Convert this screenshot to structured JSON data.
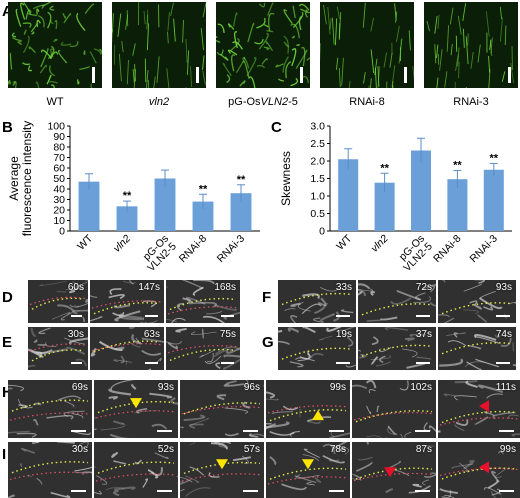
{
  "panels": {
    "A": "A",
    "B": "B",
    "C": "C",
    "D": "D",
    "E": "E",
    "F": "F",
    "G": "G",
    "H": "H",
    "I": "I"
  },
  "panelA": {
    "labels": [
      "WT",
      "vln2",
      "pG-OsVLN2-5",
      "RNAi-8",
      "RNAi-3"
    ],
    "label_parts": [
      {
        "pre": "WT",
        "it": "",
        "post": ""
      },
      {
        "pre": "",
        "it": "vln2",
        "post": ""
      },
      {
        "pre": "pG-Os",
        "it": "VLN2",
        "post": "-5"
      },
      {
        "pre": "RNAi-8",
        "it": "",
        "post": ""
      },
      {
        "pre": "RNAi-3",
        "it": "",
        "post": ""
      }
    ],
    "tile_color": "#6fd43a"
  },
  "chart_data": [
    {
      "id": "B",
      "type": "bar",
      "categories": [
        "WT",
        "vln2",
        "pG-Os VLN2-5",
        "RNAi-8",
        "RNAi-3"
      ],
      "category_lines": [
        [
          "WT"
        ],
        [
          "vln2"
        ],
        [
          "pG-Os",
          "VLN2-5"
        ],
        [
          "RNAi-8"
        ],
        [
          "RNAi-3"
        ]
      ],
      "values": [
        47,
        23.5,
        50,
        28,
        36
      ],
      "errors": [
        7.5,
        5,
        8,
        7,
        8
      ],
      "significance": [
        "",
        "**",
        "",
        "**",
        "**"
      ],
      "ylabel": "Average fluorescence intensity",
      "ylabel_lines": [
        "Average",
        "fluorescence intensity"
      ],
      "ylim": [
        0,
        100
      ],
      "yticks": [
        0,
        10,
        20,
        30,
        40,
        50,
        60,
        70,
        80,
        90,
        100
      ],
      "bar_color": "#6a9fd8",
      "grid": false
    },
    {
      "id": "C",
      "type": "bar",
      "categories": [
        "WT",
        "vln2",
        "pG-Os VLN2-5",
        "RNAi-8",
        "RNAi-3"
      ],
      "category_lines": [
        [
          "WT"
        ],
        [
          "vln2"
        ],
        [
          "pG-Os",
          "VLN2-5"
        ],
        [
          "RNAi-8"
        ],
        [
          "RNAi-3"
        ]
      ],
      "values": [
        2.05,
        1.38,
        2.3,
        1.48,
        1.75
      ],
      "errors": [
        0.3,
        0.27,
        0.35,
        0.25,
        0.18
      ],
      "significance": [
        "",
        "**",
        "",
        "**",
        "**"
      ],
      "ylabel": "Skewness",
      "ylim": [
        0,
        3
      ],
      "yticks": [
        0,
        0.5,
        1.0,
        1.5,
        2.0,
        2.5,
        3.0
      ],
      "ytick_labels": [
        "0",
        "0.5",
        "1.0",
        "1.5",
        "2.0",
        "2.5",
        "3.0"
      ],
      "bar_color": "#6a9fd8",
      "grid": false
    }
  ],
  "timelapse": {
    "D": [
      "60s",
      "147s",
      "168s"
    ],
    "E": [
      "30s",
      "63s",
      "75s"
    ],
    "F": [
      "33s",
      "72s",
      "93s"
    ],
    "G": [
      "19s",
      "37s",
      "74s"
    ],
    "H": [
      "69s",
      "93s",
      "96s",
      "99s",
      "102s",
      "111s"
    ],
    "I": [
      "30s",
      "52s",
      "57s",
      "78s",
      "87s",
      "99s"
    ]
  },
  "colors": {
    "green_dots": "#e6f04a",
    "red_dots": "#e8506a",
    "yellow_arrow": "#ffe600",
    "red_arrow": "#e8102a"
  }
}
